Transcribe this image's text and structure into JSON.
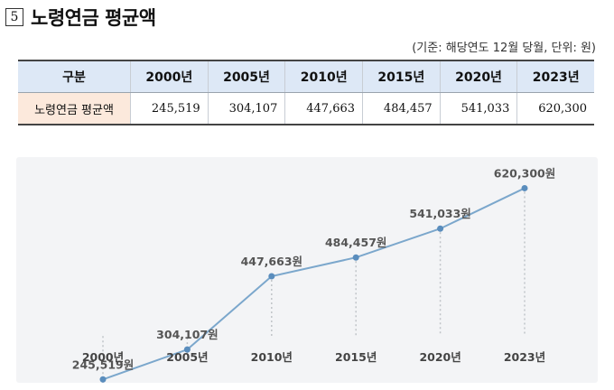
{
  "heading": {
    "number": "5",
    "title": "노령연금 평균액"
  },
  "unit_note": "(기준: 해당연도 12월 당월, 단위: 원)",
  "table": {
    "header_label": "구분",
    "columns": [
      "2000년",
      "2005년",
      "2010년",
      "2015년",
      "2020년",
      "2023년"
    ],
    "row_label": "노령연금 평균액",
    "row_values": [
      "245,519",
      "304,107",
      "447,663",
      "484,457",
      "541,033",
      "620,300"
    ]
  },
  "chart_data": {
    "type": "line",
    "categories": [
      "2000년",
      "2005년",
      "2010년",
      "2015년",
      "2020년",
      "2023년"
    ],
    "values": [
      245519,
      304107,
      447663,
      484457,
      541033,
      620300
    ],
    "data_labels": [
      "245,519원",
      "304,107원",
      "447,663원",
      "484,457원",
      "541,033원",
      "620,300원"
    ],
    "ylim": [
      200000,
      660000
    ],
    "line_color": "#7ba7cc",
    "marker_color": "#5a8dbd",
    "guide_color": "#c0c4c8",
    "grid": false,
    "legend": false
  }
}
